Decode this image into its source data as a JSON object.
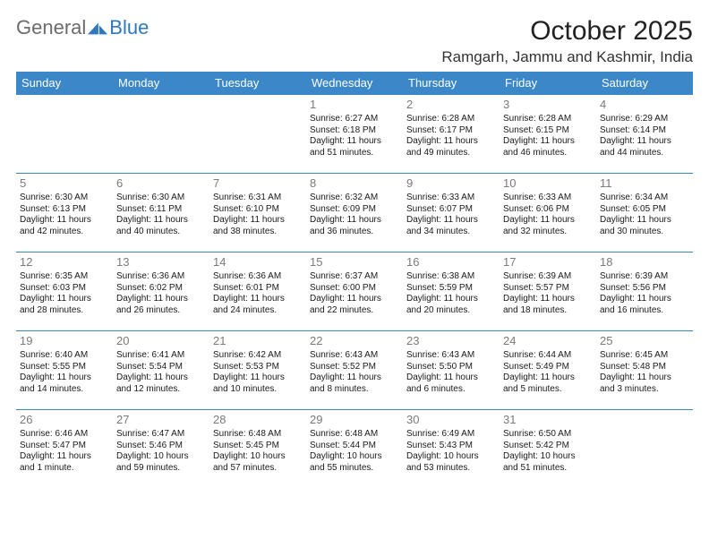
{
  "logo": {
    "general": "General",
    "blue": "Blue"
  },
  "title": "October 2025",
  "location": "Ramgarh, Jammu and Kashmir, India",
  "colors": {
    "header_bg": "#3b87c8",
    "header_text": "#ffffff",
    "border": "#3b87c8",
    "daynum": "#7a7a7a",
    "logo_blue": "#2f78bd",
    "logo_gray": "#6b6b6b"
  },
  "day_headers": [
    "Sunday",
    "Monday",
    "Tuesday",
    "Wednesday",
    "Thursday",
    "Friday",
    "Saturday"
  ],
  "weeks": [
    [
      null,
      null,
      null,
      {
        "n": "1",
        "sr": "Sunrise: 6:27 AM",
        "ss": "Sunset: 6:18 PM",
        "d1": "Daylight: 11 hours",
        "d2": "and 51 minutes."
      },
      {
        "n": "2",
        "sr": "Sunrise: 6:28 AM",
        "ss": "Sunset: 6:17 PM",
        "d1": "Daylight: 11 hours",
        "d2": "and 49 minutes."
      },
      {
        "n": "3",
        "sr": "Sunrise: 6:28 AM",
        "ss": "Sunset: 6:15 PM",
        "d1": "Daylight: 11 hours",
        "d2": "and 46 minutes."
      },
      {
        "n": "4",
        "sr": "Sunrise: 6:29 AM",
        "ss": "Sunset: 6:14 PM",
        "d1": "Daylight: 11 hours",
        "d2": "and 44 minutes."
      }
    ],
    [
      {
        "n": "5",
        "sr": "Sunrise: 6:30 AM",
        "ss": "Sunset: 6:13 PM",
        "d1": "Daylight: 11 hours",
        "d2": "and 42 minutes."
      },
      {
        "n": "6",
        "sr": "Sunrise: 6:30 AM",
        "ss": "Sunset: 6:11 PM",
        "d1": "Daylight: 11 hours",
        "d2": "and 40 minutes."
      },
      {
        "n": "7",
        "sr": "Sunrise: 6:31 AM",
        "ss": "Sunset: 6:10 PM",
        "d1": "Daylight: 11 hours",
        "d2": "and 38 minutes."
      },
      {
        "n": "8",
        "sr": "Sunrise: 6:32 AM",
        "ss": "Sunset: 6:09 PM",
        "d1": "Daylight: 11 hours",
        "d2": "and 36 minutes."
      },
      {
        "n": "9",
        "sr": "Sunrise: 6:33 AM",
        "ss": "Sunset: 6:07 PM",
        "d1": "Daylight: 11 hours",
        "d2": "and 34 minutes."
      },
      {
        "n": "10",
        "sr": "Sunrise: 6:33 AM",
        "ss": "Sunset: 6:06 PM",
        "d1": "Daylight: 11 hours",
        "d2": "and 32 minutes."
      },
      {
        "n": "11",
        "sr": "Sunrise: 6:34 AM",
        "ss": "Sunset: 6:05 PM",
        "d1": "Daylight: 11 hours",
        "d2": "and 30 minutes."
      }
    ],
    [
      {
        "n": "12",
        "sr": "Sunrise: 6:35 AM",
        "ss": "Sunset: 6:03 PM",
        "d1": "Daylight: 11 hours",
        "d2": "and 28 minutes."
      },
      {
        "n": "13",
        "sr": "Sunrise: 6:36 AM",
        "ss": "Sunset: 6:02 PM",
        "d1": "Daylight: 11 hours",
        "d2": "and 26 minutes."
      },
      {
        "n": "14",
        "sr": "Sunrise: 6:36 AM",
        "ss": "Sunset: 6:01 PM",
        "d1": "Daylight: 11 hours",
        "d2": "and 24 minutes."
      },
      {
        "n": "15",
        "sr": "Sunrise: 6:37 AM",
        "ss": "Sunset: 6:00 PM",
        "d1": "Daylight: 11 hours",
        "d2": "and 22 minutes."
      },
      {
        "n": "16",
        "sr": "Sunrise: 6:38 AM",
        "ss": "Sunset: 5:59 PM",
        "d1": "Daylight: 11 hours",
        "d2": "and 20 minutes."
      },
      {
        "n": "17",
        "sr": "Sunrise: 6:39 AM",
        "ss": "Sunset: 5:57 PM",
        "d1": "Daylight: 11 hours",
        "d2": "and 18 minutes."
      },
      {
        "n": "18",
        "sr": "Sunrise: 6:39 AM",
        "ss": "Sunset: 5:56 PM",
        "d1": "Daylight: 11 hours",
        "d2": "and 16 minutes."
      }
    ],
    [
      {
        "n": "19",
        "sr": "Sunrise: 6:40 AM",
        "ss": "Sunset: 5:55 PM",
        "d1": "Daylight: 11 hours",
        "d2": "and 14 minutes."
      },
      {
        "n": "20",
        "sr": "Sunrise: 6:41 AM",
        "ss": "Sunset: 5:54 PM",
        "d1": "Daylight: 11 hours",
        "d2": "and 12 minutes."
      },
      {
        "n": "21",
        "sr": "Sunrise: 6:42 AM",
        "ss": "Sunset: 5:53 PM",
        "d1": "Daylight: 11 hours",
        "d2": "and 10 minutes."
      },
      {
        "n": "22",
        "sr": "Sunrise: 6:43 AM",
        "ss": "Sunset: 5:52 PM",
        "d1": "Daylight: 11 hours",
        "d2": "and 8 minutes."
      },
      {
        "n": "23",
        "sr": "Sunrise: 6:43 AM",
        "ss": "Sunset: 5:50 PM",
        "d1": "Daylight: 11 hours",
        "d2": "and 6 minutes."
      },
      {
        "n": "24",
        "sr": "Sunrise: 6:44 AM",
        "ss": "Sunset: 5:49 PM",
        "d1": "Daylight: 11 hours",
        "d2": "and 5 minutes."
      },
      {
        "n": "25",
        "sr": "Sunrise: 6:45 AM",
        "ss": "Sunset: 5:48 PM",
        "d1": "Daylight: 11 hours",
        "d2": "and 3 minutes."
      }
    ],
    [
      {
        "n": "26",
        "sr": "Sunrise: 6:46 AM",
        "ss": "Sunset: 5:47 PM",
        "d1": "Daylight: 11 hours",
        "d2": "and 1 minute."
      },
      {
        "n": "27",
        "sr": "Sunrise: 6:47 AM",
        "ss": "Sunset: 5:46 PM",
        "d1": "Daylight: 10 hours",
        "d2": "and 59 minutes."
      },
      {
        "n": "28",
        "sr": "Sunrise: 6:48 AM",
        "ss": "Sunset: 5:45 PM",
        "d1": "Daylight: 10 hours",
        "d2": "and 57 minutes."
      },
      {
        "n": "29",
        "sr": "Sunrise: 6:48 AM",
        "ss": "Sunset: 5:44 PM",
        "d1": "Daylight: 10 hours",
        "d2": "and 55 minutes."
      },
      {
        "n": "30",
        "sr": "Sunrise: 6:49 AM",
        "ss": "Sunset: 5:43 PM",
        "d1": "Daylight: 10 hours",
        "d2": "and 53 minutes."
      },
      {
        "n": "31",
        "sr": "Sunrise: 6:50 AM",
        "ss": "Sunset: 5:42 PM",
        "d1": "Daylight: 10 hours",
        "d2": "and 51 minutes."
      },
      null
    ]
  ]
}
